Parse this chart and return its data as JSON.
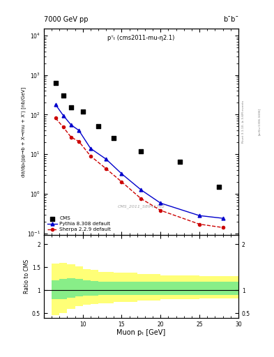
{
  "title_left": "7000 GeV pp",
  "title_right": "b¯b¯",
  "annotation": "pᵀₜ (cms2011-mu-η2.1)",
  "watermark": "CMS_2011_S8941262",
  "ylabel_main": "dσ/dpₜ(pp→b + X→mu + X’) [nb/GeV]",
  "xlabel": "Muon pₜ [GeV]",
  "ylabel_ratio": "Ratio to CMS",
  "right_label": "Rivet 3.1.10, ≥ 3.6M events",
  "arxiv_label": "[arXiv:1306.3436]",
  "cms_x": [
    6.5,
    7.5,
    8.5,
    10.0,
    12.0,
    14.0,
    17.5,
    22.5,
    27.5
  ],
  "cms_y": [
    620,
    300,
    150,
    120,
    50,
    26,
    12,
    6.5,
    1.5
  ],
  "pythia_x": [
    6.5,
    7.5,
    8.5,
    9.5,
    11.0,
    13.0,
    15.0,
    17.5,
    20.0,
    25.0,
    28.0
  ],
  "pythia_y": [
    180,
    95,
    55,
    40,
    14.0,
    7.5,
    3.2,
    1.25,
    0.58,
    0.28,
    0.24
  ],
  "sherpa_x": [
    6.5,
    7.5,
    8.5,
    9.5,
    11.0,
    13.0,
    15.0,
    17.5,
    20.0,
    25.0,
    28.0
  ],
  "sherpa_y": [
    82,
    48,
    27,
    21,
    9.0,
    4.3,
    2.0,
    0.75,
    0.38,
    0.17,
    0.14
  ],
  "ratio_x_edges": [
    6,
    7,
    8,
    9,
    10,
    11,
    12,
    14,
    17,
    20,
    25,
    30
  ],
  "green_band_low": [
    0.8,
    0.8,
    0.83,
    0.86,
    0.88,
    0.88,
    0.9,
    0.9,
    0.9,
    0.9,
    0.9
  ],
  "green_band_high": [
    1.22,
    1.24,
    1.26,
    1.24,
    1.22,
    1.2,
    1.18,
    1.18,
    1.18,
    1.18,
    1.18
  ],
  "yellow_band_low": [
    0.45,
    0.5,
    0.6,
    0.65,
    0.68,
    0.7,
    0.72,
    0.75,
    0.78,
    0.8,
    0.82
  ],
  "yellow_band_high": [
    1.58,
    1.6,
    1.56,
    1.52,
    1.46,
    1.44,
    1.4,
    1.38,
    1.35,
    1.32,
    1.3
  ],
  "ylim_main": [
    0.09,
    15000
  ],
  "ylim_ratio": [
    0.4,
    2.2
  ],
  "xlim": [
    6,
    30
  ],
  "cms_color": "#000000",
  "pythia_color": "#0000cc",
  "sherpa_color": "#cc0000",
  "green_color": "#88ee88",
  "yellow_color": "#ffff77",
  "background_color": "#ffffff"
}
